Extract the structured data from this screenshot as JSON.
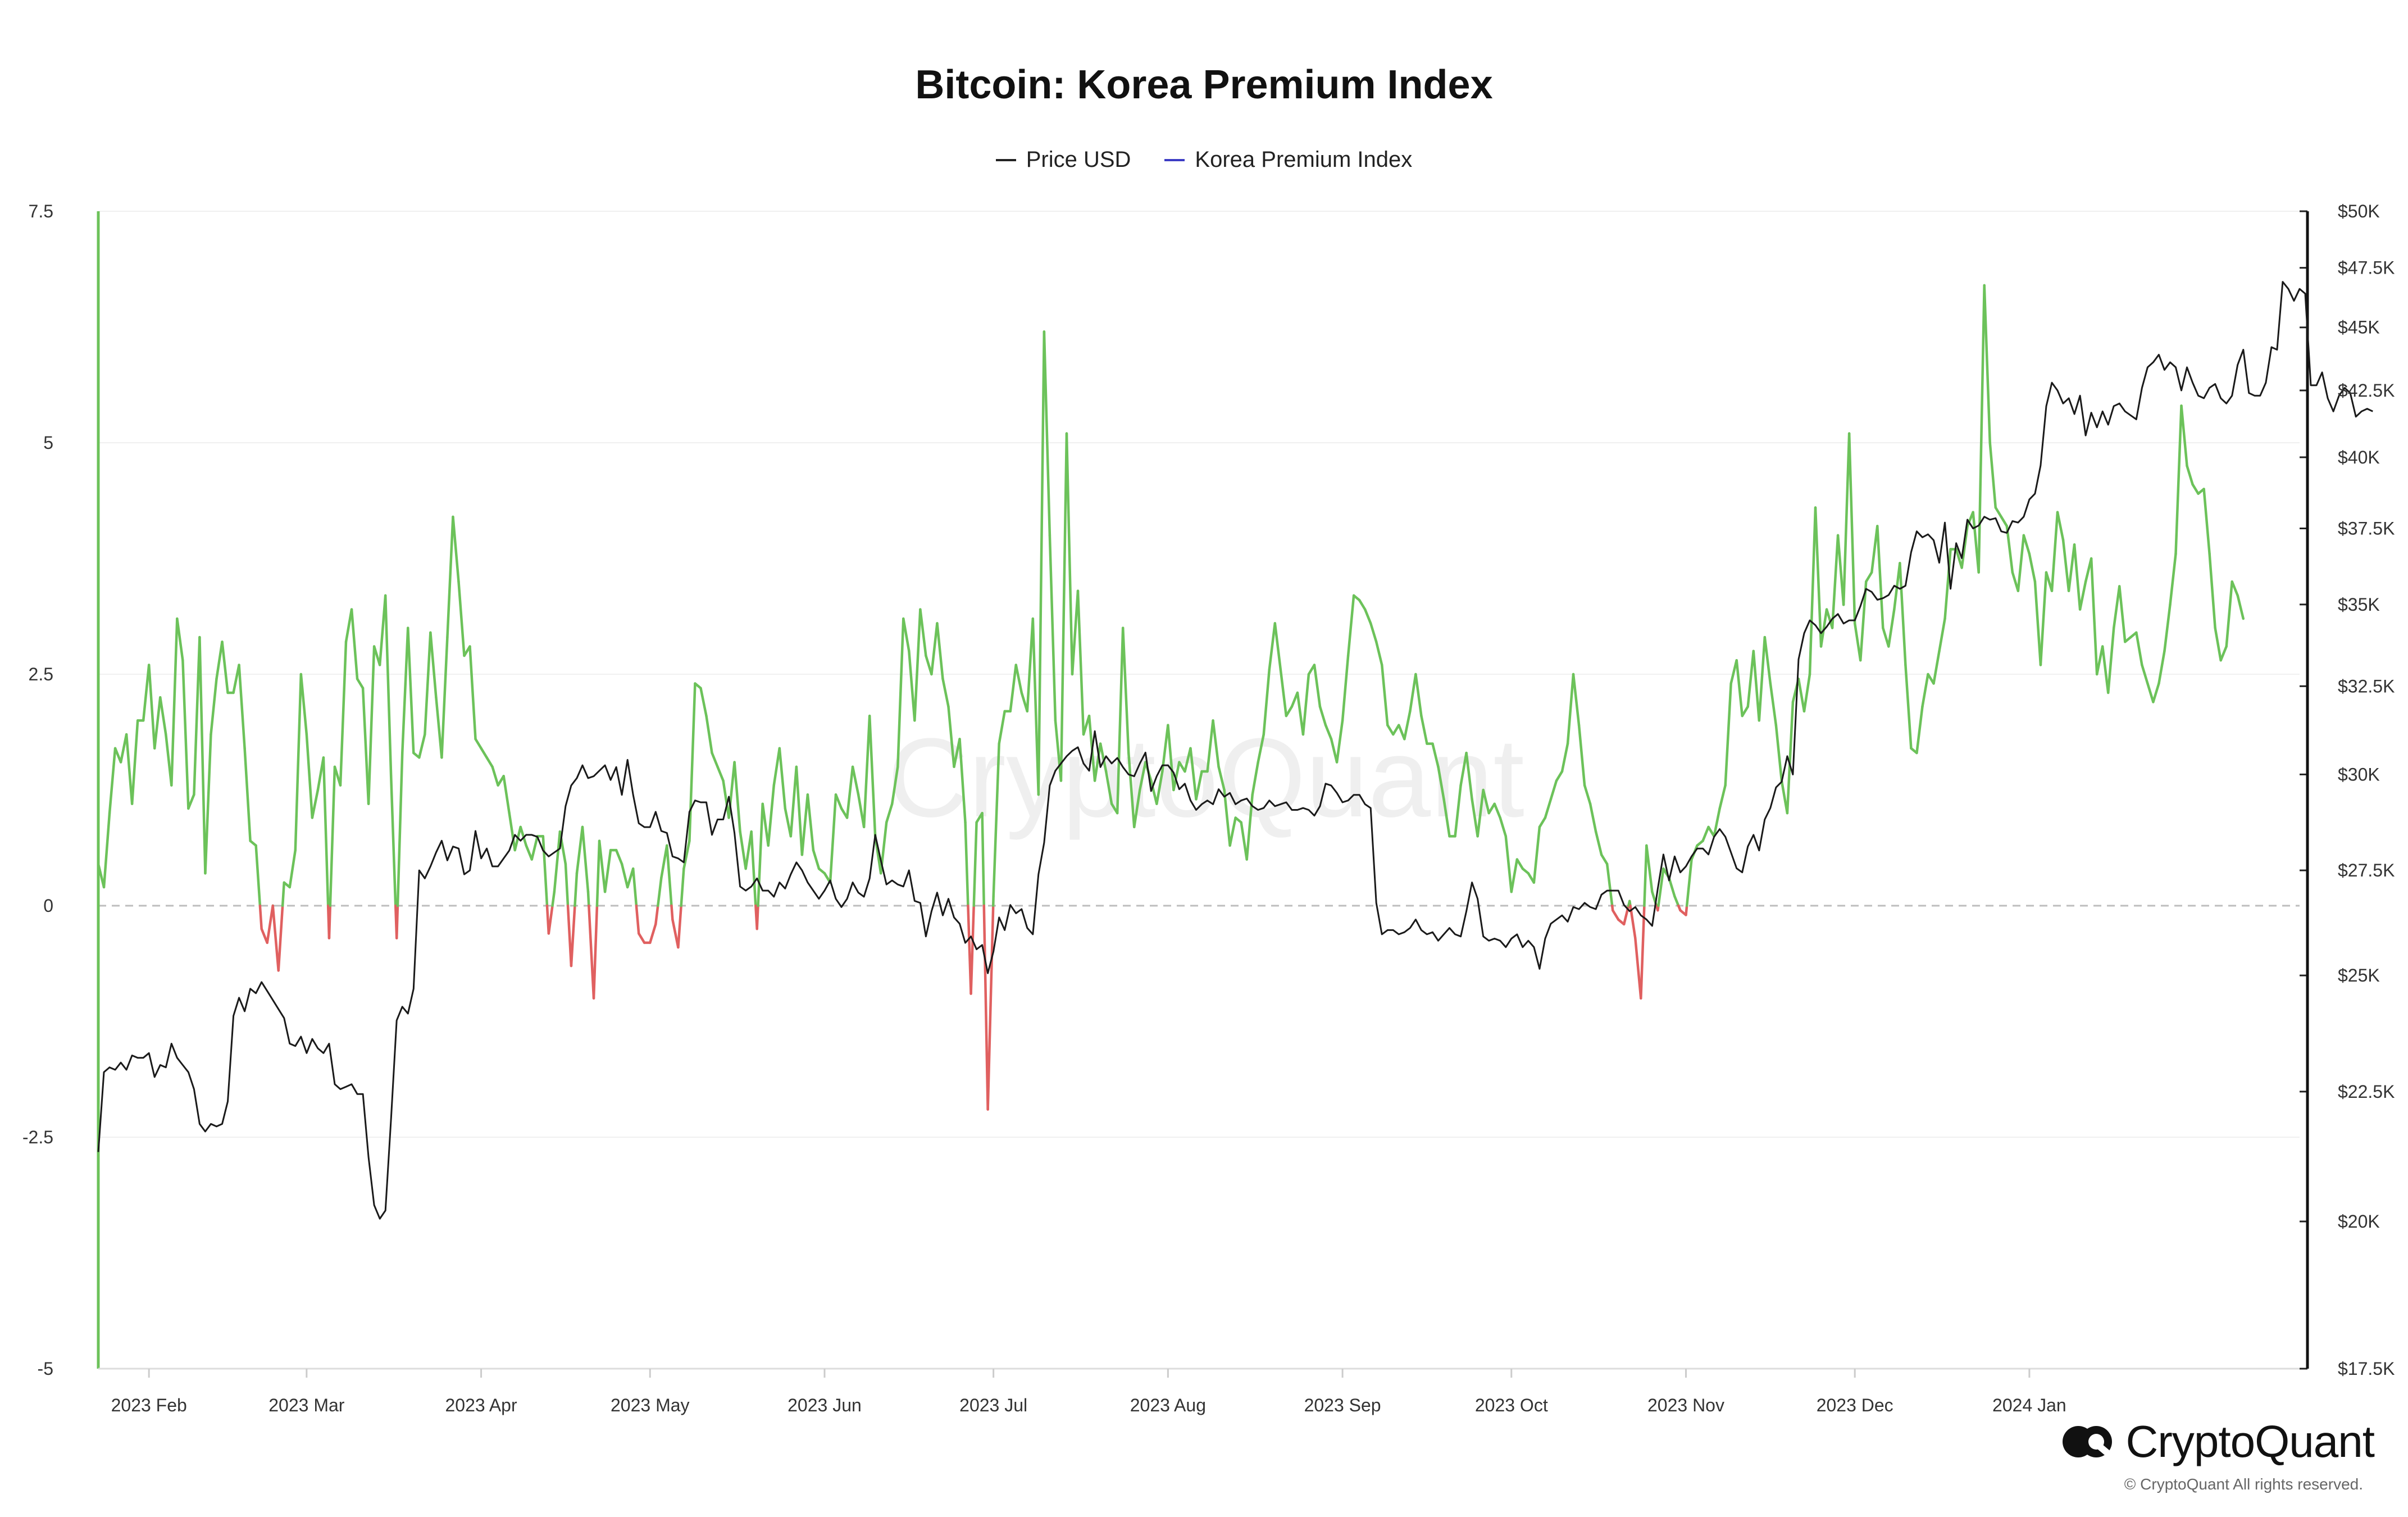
{
  "chart_data": {
    "type": "line",
    "title": "Bitcoin: Korea Premium Index",
    "legend": [
      {
        "name": "Price USD",
        "color": "#222222"
      },
      {
        "name": "Korea Premium Index",
        "color": "#3b3bc4"
      }
    ],
    "legend_position": "top-center",
    "x_labels": [
      "2023 Feb",
      "2023 Mar",
      "2023 Apr",
      "2023 May",
      "2023 Jun",
      "2023 Jul",
      "2023 Aug",
      "2023 Sep",
      "2023 Oct",
      "2023 Nov",
      "2023 Dec",
      "2024 Jan"
    ],
    "x_range_days": [
      0,
      391
    ],
    "month_start_days": [
      9,
      37,
      68,
      98,
      129,
      159,
      190,
      221,
      251,
      282,
      312,
      343
    ],
    "y_left": {
      "range": [
        -5,
        7.5
      ],
      "ticks": [
        7.5,
        5,
        2.5,
        0,
        -2.5,
        -5
      ],
      "tick_labels": [
        "7.5",
        "5",
        "2.5",
        "0",
        "-2.5",
        "-5"
      ]
    },
    "y_right": {
      "scale": "log",
      "range": [
        17500,
        50000
      ],
      "ticks": [
        50000,
        47500,
        45000,
        42500,
        40000,
        37500,
        35000,
        32500,
        30000,
        27500,
        25000,
        22500,
        20000,
        17500
      ],
      "tick_labels": [
        "$50K",
        "$47.5K",
        "$45K",
        "$42.5K",
        "$40K",
        "$37.5K",
        "$35K",
        "$32.5K",
        "$30K",
        "$27.5K",
        "$25K",
        "$22.5K",
        "$20K",
        "$17.5K"
      ]
    },
    "positive_color": "#6cc25a",
    "negative_color": "#e06060",
    "series": [
      {
        "name": "Korea Premium Index",
        "axis": "left",
        "step_days": 1,
        "values": [
          0.45,
          0.2,
          1.0,
          1.7,
          1.55,
          1.85,
          1.1,
          2.0,
          2.0,
          2.6,
          1.7,
          2.25,
          1.85,
          1.3,
          3.1,
          2.65,
          1.05,
          1.2,
          2.9,
          0.35,
          1.85,
          2.45,
          2.85,
          2.3,
          2.3,
          2.6,
          1.7,
          0.7,
          0.65,
          -0.25,
          -0.4,
          0.0,
          -0.7,
          0.25,
          0.2,
          0.6,
          2.5,
          1.85,
          0.95,
          1.25,
          1.6,
          -0.35,
          1.5,
          1.3,
          2.85,
          3.2,
          2.45,
          2.35,
          1.1,
          2.8,
          2.6,
          3.35,
          1.4,
          -0.35,
          1.65,
          3.0,
          1.65,
          1.6,
          1.85,
          2.95,
          2.25,
          1.6,
          2.9,
          4.2,
          3.5,
          2.7,
          2.8,
          1.8,
          1.7,
          1.6,
          1.5,
          1.3,
          1.4,
          1.0,
          0.6,
          0.85,
          0.65,
          0.5,
          0.75,
          0.75,
          -0.3,
          0.15,
          0.8,
          0.45,
          -0.65,
          0.35,
          0.85,
          0.15,
          -1.0,
          0.7,
          0.15,
          0.6,
          0.6,
          0.45,
          0.2,
          0.4,
          -0.3,
          -0.4,
          -0.4,
          -0.2,
          0.3,
          0.65,
          -0.15,
          -0.45,
          0.4,
          0.7,
          2.4,
          2.35,
          2.05,
          1.65,
          1.5,
          1.35,
          0.95,
          1.55,
          0.8,
          0.4,
          0.8,
          -0.25,
          1.1,
          0.65,
          1.3,
          1.7,
          1.05,
          0.75,
          1.5,
          0.55,
          1.2,
          0.6,
          0.4,
          0.35,
          0.25,
          1.2,
          1.05,
          0.95,
          1.5,
          1.2,
          0.85,
          2.05,
          0.75,
          0.35,
          0.9,
          1.1,
          1.5,
          3.1,
          2.75,
          2.0,
          3.2,
          2.7,
          2.5,
          3.05,
          2.45,
          2.15,
          1.5,
          1.8,
          0.9,
          -0.95,
          0.9,
          1.0,
          -2.2,
          0.1,
          1.75,
          2.1,
          2.1,
          2.6,
          2.3,
          2.1,
          3.1,
          1.2,
          6.2,
          4.0,
          2.0,
          1.35,
          5.1,
          2.5,
          3.4,
          1.85,
          2.05,
          1.35,
          1.75,
          1.45,
          1.1,
          1.0,
          3.0,
          1.65,
          0.85,
          1.25,
          1.55,
          1.35,
          1.1,
          1.45,
          1.95,
          1.25,
          1.55,
          1.45,
          1.7,
          1.15,
          1.45,
          1.45,
          2.0,
          1.5,
          1.25,
          0.65,
          0.95,
          0.9,
          0.5,
          1.2,
          1.55,
          1.85,
          2.55,
          3.05,
          2.55,
          2.05,
          2.15,
          2.3,
          1.85,
          2.5,
          2.6,
          2.15,
          1.95,
          1.8,
          1.55,
          2.0,
          2.7,
          3.35,
          3.3,
          3.2,
          3.05,
          2.85,
          2.6,
          1.95,
          1.85,
          1.95,
          1.8,
          2.1,
          2.5,
          2.05,
          1.75,
          1.75,
          1.5,
          1.15,
          0.75,
          0.75,
          1.3,
          1.65,
          1.15,
          0.75,
          1.25,
          1.0,
          1.1,
          0.95,
          0.75,
          0.15,
          0.5,
          0.4,
          0.35,
          0.25,
          0.85,
          0.95,
          1.15,
          1.35,
          1.45,
          1.75,
          2.5,
          1.95,
          1.3,
          1.1,
          0.8,
          0.55,
          0.45,
          -0.05,
          -0.15,
          -0.2,
          0.05,
          -0.35,
          -1.0,
          0.65,
          0.15,
          -0.05,
          0.4,
          0.3,
          0.1,
          -0.05,
          -0.1,
          0.5,
          0.65,
          0.7,
          0.85,
          0.75,
          1.05,
          1.3,
          2.4,
          2.65,
          2.05,
          2.15,
          2.75,
          2.0,
          2.9,
          2.4,
          1.95,
          1.35,
          1.0,
          2.2,
          2.45,
          2.1,
          2.5,
          4.3,
          2.8,
          3.2,
          3.0,
          4.0,
          3.25,
          5.1,
          3.05,
          2.65,
          3.5,
          3.6,
          4.1,
          3.0,
          2.8,
          3.2,
          3.7,
          2.6,
          1.7,
          1.65,
          2.15,
          2.5,
          2.4,
          2.75,
          3.1,
          3.85,
          3.85,
          3.65,
          4.1,
          4.25,
          3.6,
          6.7,
          5.0,
          4.3,
          4.2,
          4.1,
          3.6,
          3.4,
          4.0,
          3.8,
          3.5,
          2.6,
          3.6,
          3.4,
          4.25,
          3.95,
          3.4,
          3.9,
          3.2,
          3.5,
          3.75,
          2.5,
          2.8,
          2.3,
          3.0,
          3.45,
          2.85,
          2.9,
          2.95,
          2.6,
          2.4,
          2.2,
          2.4,
          2.75,
          3.25,
          3.8,
          5.4,
          4.75,
          4.55,
          4.45,
          4.5,
          3.8,
          3.0,
          2.65,
          2.8,
          3.5,
          3.35,
          3.1
        ]
      },
      {
        "name": "Price USD",
        "axis": "right",
        "step_days": 1,
        "values": [
          21300,
          22900,
          23000,
          22950,
          23100,
          22950,
          23250,
          23200,
          23200,
          23300,
          22800,
          23050,
          23000,
          23500,
          23200,
          23050,
          22900,
          22550,
          21850,
          21700,
          21850,
          21800,
          21850,
          22300,
          24100,
          24500,
          24200,
          24700,
          24600,
          24850,
          24650,
          24450,
          24250,
          24050,
          23500,
          23450,
          23650,
          23300,
          23600,
          23400,
          23300,
          23500,
          22650,
          22550,
          22600,
          22650,
          22450,
          22450,
          21200,
          20300,
          20050,
          20200,
          21950,
          24000,
          24300,
          24150,
          24700,
          27500,
          27300,
          27600,
          27950,
          28250,
          27750,
          28100,
          28050,
          27400,
          27500,
          28500,
          27800,
          28050,
          27600,
          27600,
          27800,
          28000,
          28400,
          28250,
          28400,
          28400,
          28350,
          28000,
          27850,
          27950,
          28050,
          29150,
          29700,
          29900,
          30250,
          29900,
          29950,
          30100,
          30250,
          29850,
          30200,
          29450,
          30400,
          29450,
          28700,
          28600,
          28600,
          29000,
          28500,
          28450,
          27850,
          27800,
          27700,
          29000,
          29300,
          29250,
          29250,
          28400,
          28800,
          28800,
          29400,
          28450,
          27100,
          27000,
          27100,
          27300,
          27000,
          27000,
          26850,
          27200,
          27050,
          27400,
          27700,
          27500,
          27200,
          27000,
          26800,
          27000,
          27250,
          26800,
          26600,
          26800,
          27200,
          26950,
          26850,
          27300,
          28400,
          27750,
          27150,
          27250,
          27150,
          27100,
          27500,
          26750,
          26700,
          25900,
          26500,
          26950,
          26400,
          26800,
          26350,
          26200,
          25750,
          25900,
          25600,
          25700,
          25050,
          25550,
          26350,
          26050,
          26650,
          26450,
          26550,
          26100,
          25950,
          27400,
          28200,
          29700,
          30100,
          30300,
          30500,
          30650,
          30750,
          30300,
          30100,
          31200,
          30200,
          30500,
          30300,
          30450,
          30200,
          30000,
          29950,
          30300,
          30600,
          29550,
          29950,
          30250,
          30250,
          30050,
          29600,
          29750,
          29300,
          29050,
          29200,
          29300,
          29200,
          29600,
          29400,
          29500,
          29200,
          29300,
          29350,
          29150,
          29050,
          29100,
          29300,
          29150,
          29200,
          29250,
          29050,
          29050,
          29100,
          29050,
          28900,
          29150,
          29750,
          29700,
          29500,
          29250,
          29300,
          29450,
          29450,
          29200,
          29100,
          26700,
          25950,
          26050,
          26050,
          25950,
          26000,
          26100,
          26300,
          26050,
          25950,
          26000,
          25800,
          25950,
          26100,
          25950,
          25900,
          26500,
          27200,
          26800,
          25900,
          25800,
          25850,
          25800,
          25650,
          25850,
          25950,
          25650,
          25800,
          25650,
          25150,
          25850,
          26200,
          26300,
          26400,
          26250,
          26600,
          26550,
          26700,
          26600,
          26550,
          26900,
          27000,
          27000,
          27000,
          26650,
          26500,
          26600,
          26400,
          26300,
          26150,
          27050,
          27900,
          27250,
          27850,
          27450,
          27600,
          27850,
          28050,
          28050,
          27900,
          28350,
          28550,
          28350,
          27950,
          27550,
          27450,
          28100,
          28400,
          28000,
          28800,
          29100,
          29650,
          29800,
          30500,
          30000,
          33300,
          34100,
          34500,
          34350,
          34100,
          34300,
          34550,
          34700,
          34400,
          34500,
          34500,
          34950,
          35500,
          35400,
          35150,
          35200,
          35300,
          35600,
          35500,
          35600,
          36700,
          37400,
          37200,
          37300,
          37100,
          36350,
          37700,
          35500,
          37000,
          36500,
          37800,
          37500,
          37600,
          37900,
          37800,
          37850,
          37400,
          37350,
          37750,
          37700,
          37900,
          38500,
          38700,
          39700,
          41900,
          42800,
          42500,
          42000,
          42200,
          41600,
          42300,
          40800,
          41650,
          41100,
          41700,
          41200,
          41900,
          42000,
          41700,
          41550,
          41400,
          42600,
          43400,
          43600,
          43900,
          43300,
          43600,
          43400,
          42500,
          43400,
          42800,
          42300,
          42200,
          42600,
          42750,
          42200,
          42000,
          42300,
          43500,
          44100,
          42400,
          42300,
          42300,
          42800,
          44200,
          44100,
          46900,
          46600,
          46100,
          46600,
          46400,
          42700,
          42700,
          43200,
          42200,
          41700,
          42300,
          42600,
          42400,
          41500,
          41700,
          41800,
          41700
        ]
      }
    ]
  },
  "branding": {
    "watermark": "CryptoQuant",
    "brand_name": "CryptoQuant",
    "copyright": "© CryptoQuant All rights reserved."
  }
}
